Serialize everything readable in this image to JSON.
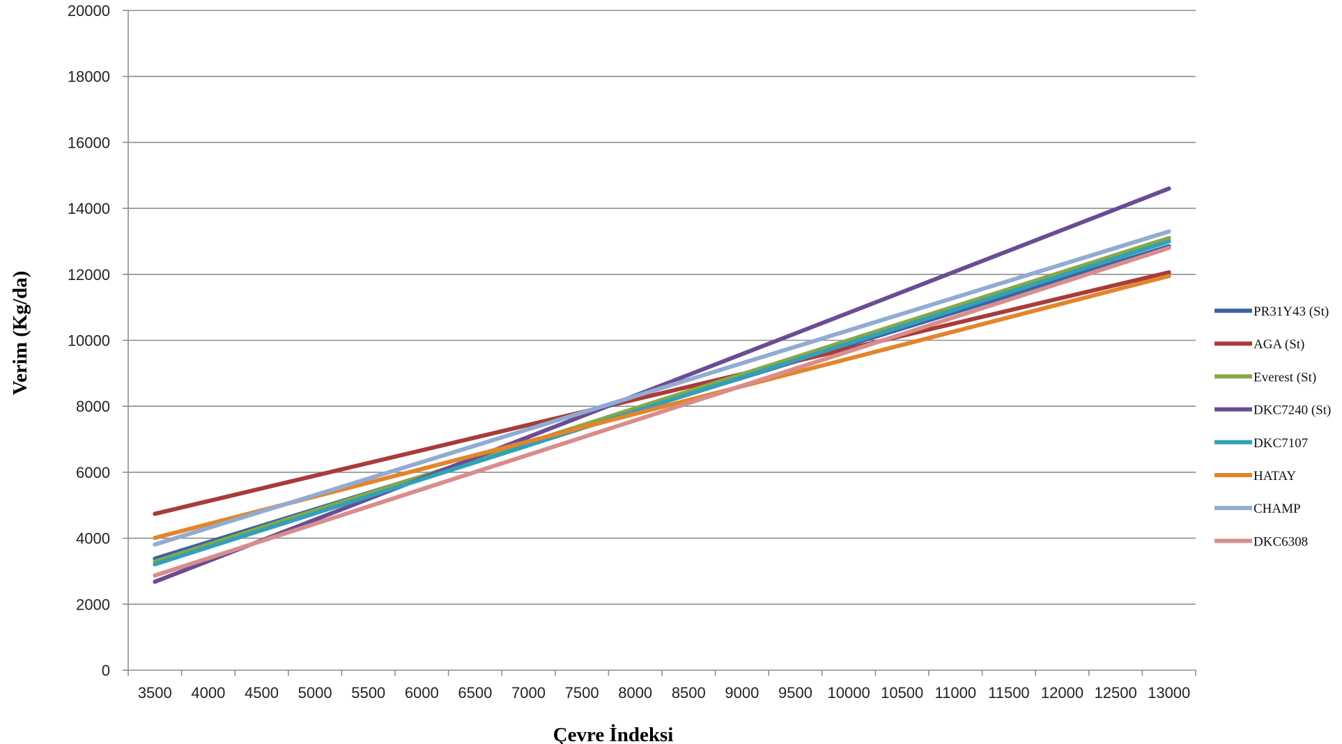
{
  "chart_data": {
    "type": "line",
    "xlabel": "Çevre İndeksi",
    "ylabel": "Verim (Kg/da)",
    "xlim": [
      3250,
      13250
    ],
    "ylim": [
      0,
      20000
    ],
    "x_ticks": [
      3500,
      4000,
      4500,
      5000,
      5500,
      6000,
      6500,
      7000,
      7500,
      8000,
      8500,
      9000,
      9500,
      10000,
      10500,
      11000,
      11500,
      12000,
      12500,
      13000
    ],
    "y_ticks": [
      0,
      2000,
      4000,
      6000,
      8000,
      10000,
      12000,
      14000,
      16000,
      18000,
      20000
    ],
    "grid": "horizontal",
    "legend_position": "right",
    "series": [
      {
        "name": "PR31Y43 (St)",
        "color": "#3b64a3",
        "x": [
          3500,
          13000
        ],
        "y": [
          3380,
          12850
        ]
      },
      {
        "name": "AGA (St)",
        "color": "#a83c3a",
        "x": [
          3500,
          13000
        ],
        "y": [
          4740,
          12060
        ]
      },
      {
        "name": "Everest (St)",
        "color": "#86a845",
        "x": [
          3500,
          13000
        ],
        "y": [
          3290,
          13100
        ]
      },
      {
        "name": "DKC7240 (St)",
        "color": "#6b4c94",
        "x": [
          3500,
          13000
        ],
        "y": [
          2680,
          14600
        ]
      },
      {
        "name": "DKC7107",
        "color": "#33a0b8",
        "x": [
          3500,
          13000
        ],
        "y": [
          3210,
          13000
        ]
      },
      {
        "name": "HATAY",
        "color": "#e2852c",
        "x": [
          3500,
          13000
        ],
        "y": [
          4010,
          11950
        ]
      },
      {
        "name": "CHAMP",
        "color": "#92abd2",
        "x": [
          3500,
          13000
        ],
        "y": [
          3810,
          13300
        ]
      },
      {
        "name": "DKC6308",
        "color": "#d88d8c",
        "x": [
          3500,
          13000
        ],
        "y": [
          2870,
          12800
        ]
      }
    ]
  }
}
